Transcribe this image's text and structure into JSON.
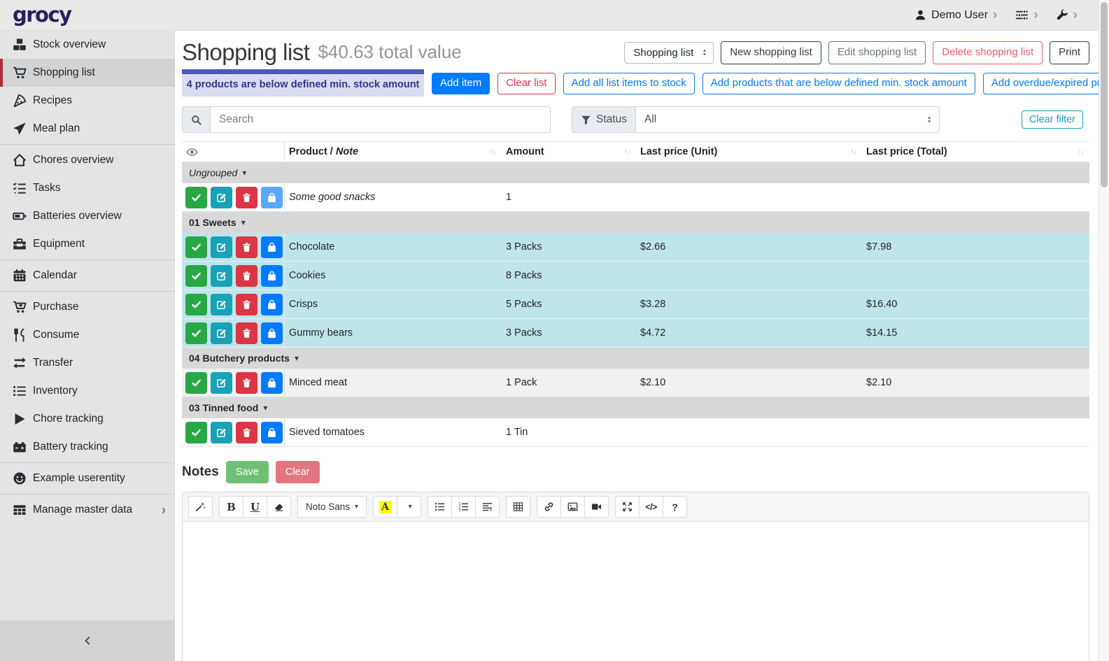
{
  "topbar": {
    "logo": "grocy",
    "user": "Demo User"
  },
  "sidebar": {
    "items": [
      {
        "label": "Stock overview",
        "icon": "boxes"
      },
      {
        "label": "Shopping list",
        "icon": "cart",
        "active": true
      },
      {
        "label": "Recipes",
        "icon": "pizza"
      },
      {
        "label": "Meal plan",
        "icon": "plane",
        "divider_after": true
      },
      {
        "label": "Chores overview",
        "icon": "home"
      },
      {
        "label": "Tasks",
        "icon": "tasks"
      },
      {
        "label": "Batteries overview",
        "icon": "battery"
      },
      {
        "label": "Equipment",
        "icon": "toolbox",
        "divider_after": true
      },
      {
        "label": "Calendar",
        "icon": "calendar",
        "divider_after": true
      },
      {
        "label": "Purchase",
        "icon": "cartplus"
      },
      {
        "label": "Consume",
        "icon": "utensils"
      },
      {
        "label": "Transfer",
        "icon": "exchange"
      },
      {
        "label": "Inventory",
        "icon": "listicon"
      },
      {
        "label": "Chore tracking",
        "icon": "play"
      },
      {
        "label": "Battery tracking",
        "icon": "carbattery",
        "divider_after": true
      },
      {
        "label": "Example userentity",
        "icon": "smiley",
        "divider_after": true
      },
      {
        "label": "Manage master data",
        "icon": "tableicon",
        "chevron": true
      }
    ]
  },
  "header": {
    "title": "Shopping list",
    "subtitle": "$40.63 total value",
    "list_select": "Shopping list",
    "new_label": "New shopping list",
    "edit_label": "Edit shopping list",
    "delete_label": "Delete shopping list",
    "print_label": "Print"
  },
  "alert": {
    "text": "4 products are below defined min. stock amount"
  },
  "actions": {
    "add_item": "Add item",
    "clear_list": "Clear list",
    "add_all": "Add all list items to stock",
    "add_below_min": "Add products that are below defined min. stock amount",
    "add_overdue": "Add overdue/expired products"
  },
  "filters": {
    "search_placeholder": "Search",
    "status_label": "Status",
    "status_value": "All",
    "clear_filter": "Clear filter"
  },
  "table": {
    "headers": {
      "product_1": "Product / ",
      "product_2": "Note",
      "amount": "Amount",
      "unit": "Last price (Unit)",
      "total": "Last price (Total)",
      "sort_glyph": "↑↓"
    },
    "row_buttons": [
      {
        "name": "mark-done-button",
        "icon": "check",
        "color": "#28a745"
      },
      {
        "name": "edit-item-button",
        "icon": "pencilsquare",
        "color": "#17a2b8"
      },
      {
        "name": "delete-item-button",
        "icon": "trash",
        "color": "#dc3545"
      },
      {
        "name": "add-to-stock-button",
        "icon": "bag",
        "color": "#007bff"
      }
    ],
    "sections": [
      {
        "group": "Ungrouped",
        "italic": true,
        "rows": [
          {
            "product": "Some good snacks",
            "note": true,
            "amount": "1",
            "unit": "",
            "total": "",
            "bg": "white",
            "bag_disabled": true
          }
        ]
      },
      {
        "group": "01 Sweets",
        "rows": [
          {
            "product": "Chocolate",
            "amount": "3 Packs",
            "unit": "$2.66",
            "total": "$7.98",
            "bg": "info"
          },
          {
            "product": "Cookies",
            "amount": "8 Packs",
            "unit": "",
            "total": "",
            "bg": "info"
          },
          {
            "product": "Crisps",
            "amount": "5 Packs",
            "unit": "$3.28",
            "total": "$16.40",
            "bg": "info"
          },
          {
            "product": "Gummy bears",
            "amount": "3 Packs",
            "unit": "$4.72",
            "total": "$14.15",
            "bg": "info"
          }
        ]
      },
      {
        "group": "04 Butchery products",
        "rows": [
          {
            "product": "Minced meat",
            "amount": "1 Pack",
            "unit": "$2.10",
            "total": "$2.10",
            "bg": "stripe"
          }
        ]
      },
      {
        "group": "03 Tinned food",
        "rows": [
          {
            "product": "Sieved tomatoes",
            "amount": "1 Tin",
            "unit": "",
            "total": "",
            "bg": "white"
          }
        ]
      }
    ]
  },
  "notes": {
    "title": "Notes",
    "save": "Save",
    "clear": "Clear"
  },
  "editor": {
    "font_name": "Noto Sans",
    "bold_glyph": "B",
    "underline_glyph": "U",
    "color_glyph": "A",
    "code_glyph": "</>",
    "help_glyph": "?"
  },
  "colors": {
    "primary": "#007bff",
    "success": "#28a745",
    "danger": "#dc3545",
    "info": "#17a2b8",
    "row_highlight": "#bfe5eb",
    "alert_bar": "#4c5abc",
    "alert_bg": "#dadcf2",
    "sidebar_active_accent": "#b02a37",
    "logo": "#26205e"
  }
}
